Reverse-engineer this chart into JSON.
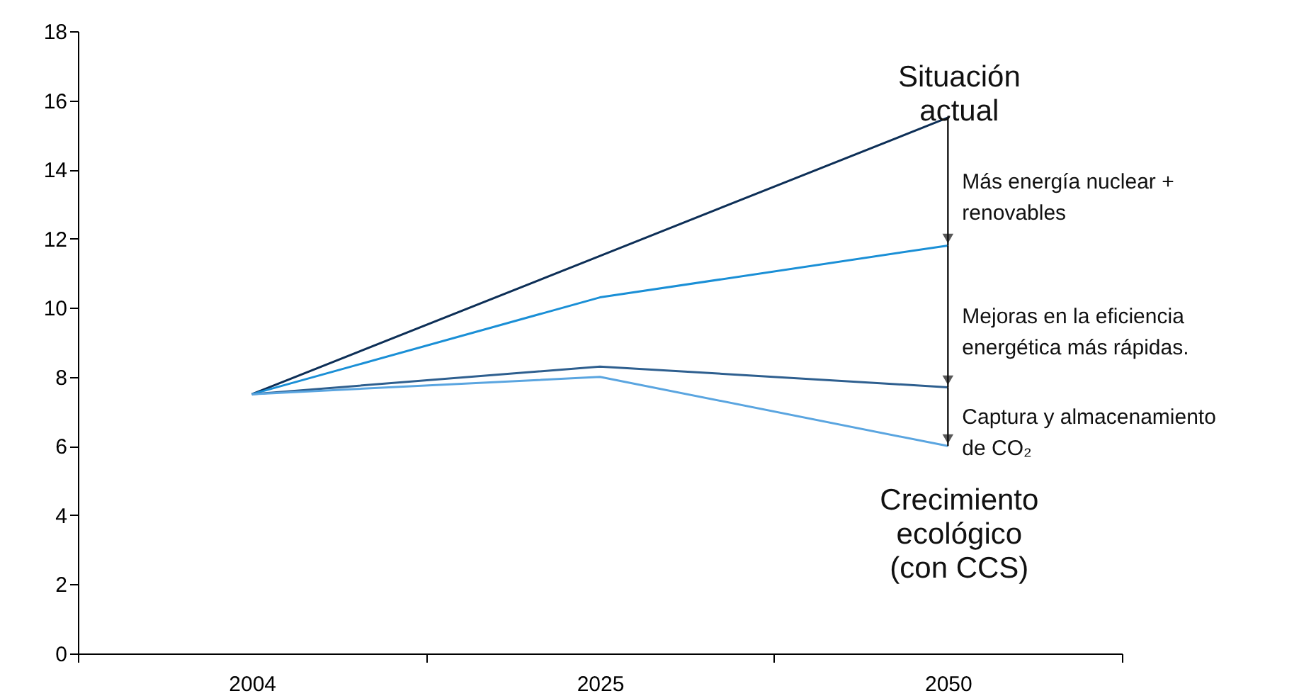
{
  "chart_data": {
    "type": "line",
    "categories": [
      "2004",
      "2025",
      "2050"
    ],
    "ylim": [
      0,
      18
    ],
    "yticks": [
      0,
      2,
      4,
      6,
      8,
      10,
      12,
      14,
      16,
      18
    ],
    "grid": false,
    "marker": "none",
    "line_style": "solid",
    "series": [
      {
        "name": "Situación actual",
        "color": "#0d2f57",
        "values": [
          7.5,
          11.5,
          15.5
        ]
      },
      {
        "color": "#1a8fd6",
        "values": [
          7.5,
          10.3,
          11.8
        ]
      },
      {
        "color": "#2e5f8f",
        "values": [
          7.5,
          8.3,
          7.7
        ]
      },
      {
        "name": "Crecimiento ecológico (con CCS)",
        "color": "#5aa5e0",
        "values": [
          7.5,
          8.0,
          6.0
        ]
      }
    ],
    "annotations": [
      {
        "text": "Más energía nuclear + renovables",
        "x": "2050",
        "y": 11.8
      },
      {
        "text": "Mejoras en la eficiencia energética más rápidas.",
        "x": "2050",
        "y": 7.7
      },
      {
        "text": "Captura y almacenamiento de CO₂",
        "x": "2050",
        "y": 6.0
      }
    ]
  }
}
